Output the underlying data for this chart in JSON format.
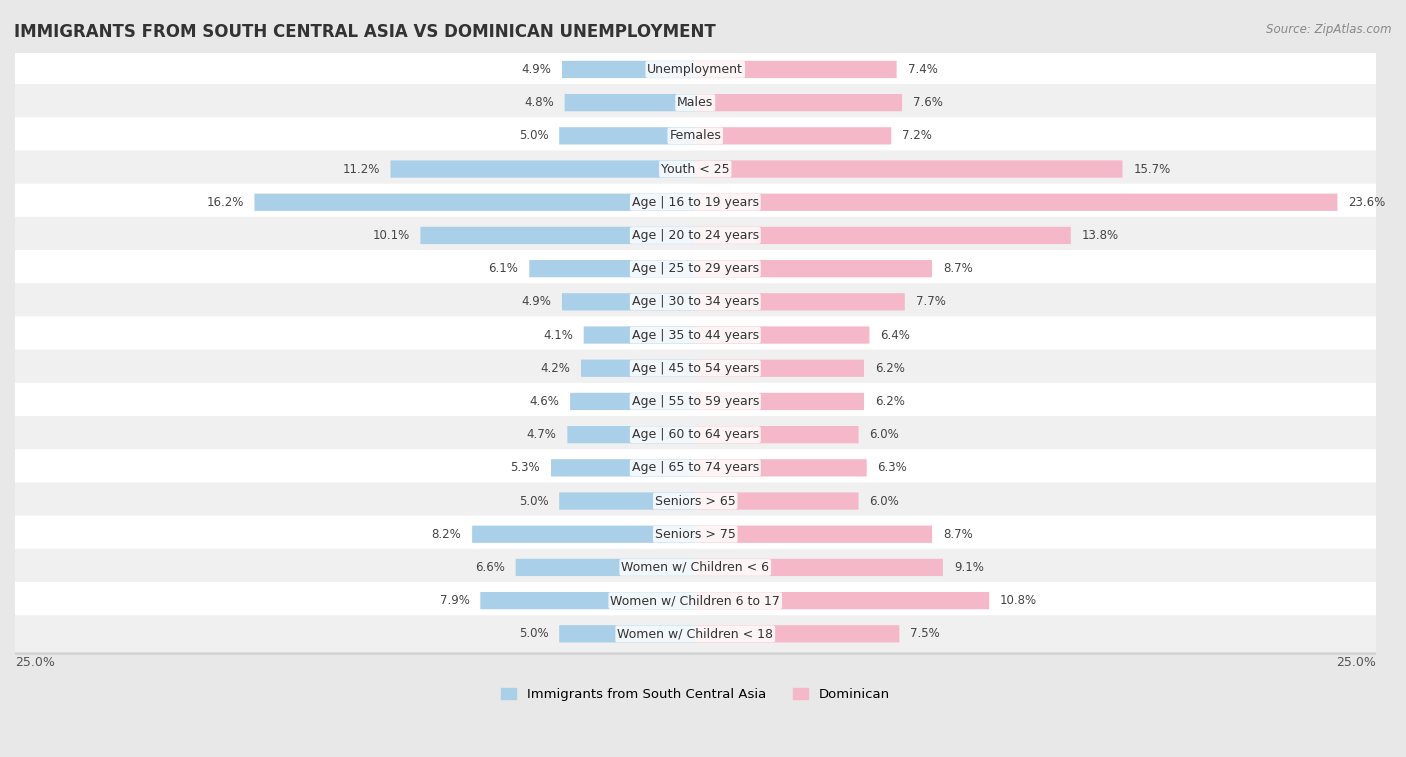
{
  "title": "IMMIGRANTS FROM SOUTH CENTRAL ASIA VS DOMINICAN UNEMPLOYMENT",
  "source": "Source: ZipAtlas.com",
  "categories": [
    "Unemployment",
    "Males",
    "Females",
    "Youth < 25",
    "Age | 16 to 19 years",
    "Age | 20 to 24 years",
    "Age | 25 to 29 years",
    "Age | 30 to 34 years",
    "Age | 35 to 44 years",
    "Age | 45 to 54 years",
    "Age | 55 to 59 years",
    "Age | 60 to 64 years",
    "Age | 65 to 74 years",
    "Seniors > 65",
    "Seniors > 75",
    "Women w/ Children < 6",
    "Women w/ Children 6 to 17",
    "Women w/ Children < 18"
  ],
  "left_values": [
    4.9,
    4.8,
    5.0,
    11.2,
    16.2,
    10.1,
    6.1,
    4.9,
    4.1,
    4.2,
    4.6,
    4.7,
    5.3,
    5.0,
    8.2,
    6.6,
    7.9,
    5.0
  ],
  "right_values": [
    7.4,
    7.6,
    7.2,
    15.7,
    23.6,
    13.8,
    8.7,
    7.7,
    6.4,
    6.2,
    6.2,
    6.0,
    6.3,
    6.0,
    8.7,
    9.1,
    10.8,
    7.5
  ],
  "left_color": "#aacfe8",
  "right_color": "#f5b8c8",
  "left_label": "Immigrants from South Central Asia",
  "right_label": "Dominican",
  "axis_max": 25.0,
  "page_bg": "#e8e8e8",
  "row_bg_light": "#f5f5f5",
  "row_bg_dark": "#e9e9e9",
  "row_border": "#d0d0d0",
  "title_fontsize": 12,
  "label_fontsize": 9,
  "value_fontsize": 8.5
}
